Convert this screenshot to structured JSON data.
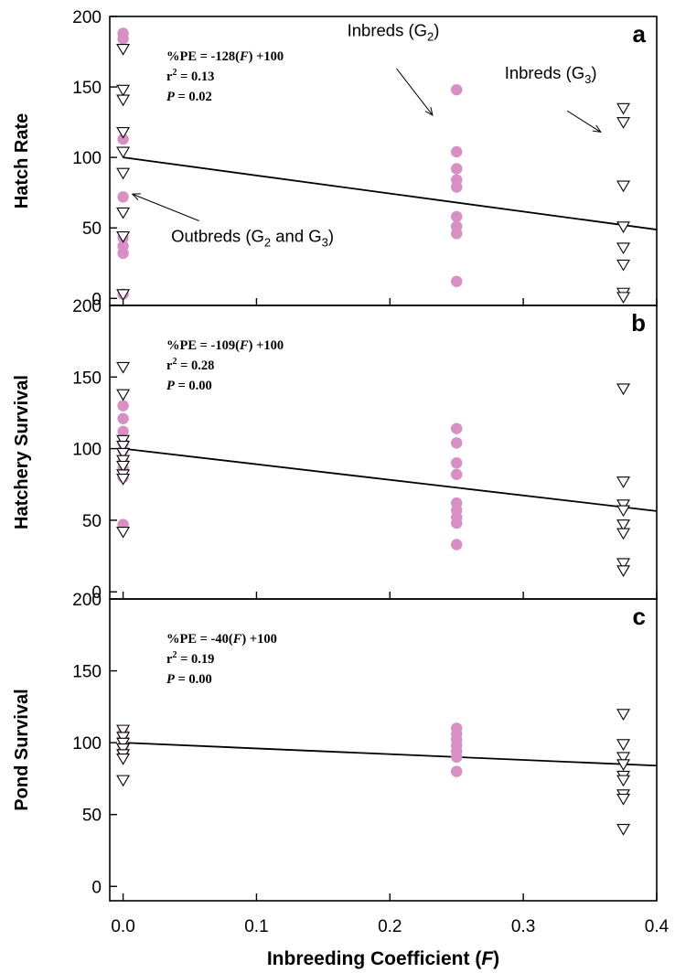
{
  "chart_data": {
    "type": "scatter",
    "x": {
      "label": "Inbreeding Coefficient (",
      "label_italic": "F",
      "label_close": ")",
      "range": [
        -0.01,
        0.4
      ],
      "ticks": [
        0.0,
        0.1,
        0.2,
        0.3,
        0.4
      ],
      "tick_labels": [
        "0.0",
        "0.1",
        "0.2",
        "0.3",
        "0.4"
      ]
    },
    "panels": [
      {
        "letter": "a",
        "ylabel": "Hatch Rate",
        "ylim": [
          -5,
          200
        ],
        "yticks": [
          0,
          50,
          100,
          150,
          200
        ],
        "ytick_labels": [
          "0",
          "50",
          "100",
          "150",
          "200"
        ],
        "eq_lead": "%PE = -128(",
        "eq_F": "F",
        "eq_tail": ") +100",
        "r2_lead": "r",
        "r2_sup": "2",
        "r2_tail": " = 0.13",
        "p_lead": "P",
        "p_tail": " = 0.02",
        "regression": {
          "slope": -128,
          "intercept": 100
        },
        "circles": [
          {
            "x": 0.0,
            "y": 188
          },
          {
            "x": 0.0,
            "y": 184
          },
          {
            "x": 0.0,
            "y": 113
          },
          {
            "x": 0.0,
            "y": 72
          },
          {
            "x": 0.0,
            "y": 43
          },
          {
            "x": 0.0,
            "y": 37
          },
          {
            "x": 0.0,
            "y": 32
          },
          {
            "x": 0.0,
            "y": 3
          },
          {
            "x": 0.25,
            "y": 148
          },
          {
            "x": 0.25,
            "y": 104
          },
          {
            "x": 0.25,
            "y": 92
          },
          {
            "x": 0.25,
            "y": 84
          },
          {
            "x": 0.25,
            "y": 79
          },
          {
            "x": 0.25,
            "y": 58
          },
          {
            "x": 0.25,
            "y": 51
          },
          {
            "x": 0.25,
            "y": 46
          },
          {
            "x": 0.25,
            "y": 12
          }
        ],
        "triangles": [
          {
            "x": 0.0,
            "y": 177
          },
          {
            "x": 0.0,
            "y": 148
          },
          {
            "x": 0.0,
            "y": 141
          },
          {
            "x": 0.0,
            "y": 118
          },
          {
            "x": 0.0,
            "y": 104
          },
          {
            "x": 0.0,
            "y": 89
          },
          {
            "x": 0.0,
            "y": 61
          },
          {
            "x": 0.0,
            "y": 44
          },
          {
            "x": 0.0,
            "y": 3
          },
          {
            "x": 0.375,
            "y": 135
          },
          {
            "x": 0.375,
            "y": 125
          },
          {
            "x": 0.375,
            "y": 80
          },
          {
            "x": 0.375,
            "y": 51
          },
          {
            "x": 0.375,
            "y": 36
          },
          {
            "x": 0.375,
            "y": 24
          },
          {
            "x": 0.375,
            "y": 4
          },
          {
            "x": 0.375,
            "y": 1
          }
        ],
        "annotations": [
          {
            "lead": "Inbreds (G",
            "sub": "2",
            "tail": ")",
            "tx": 0.168,
            "ty": 186,
            "ax1": 0.205,
            "ay1": 163,
            "ax2": 0.232,
            "ay2": 130
          },
          {
            "lead": "Inbreds (G",
            "sub": "3",
            "tail": ")",
            "tx": 0.286,
            "ty": 156,
            "ax1": 0.333,
            "ay1": 133,
            "ax2": 0.358,
            "ay2": 118
          },
          {
            "lead": "Outbreds (G",
            "sub": "2",
            "tail": " and G",
            "sub2": "3",
            "tail2": ")",
            "tx": 0.036,
            "ty": 40,
            "ax1": 0.057,
            "ay1": 55,
            "ax2": 0.007,
            "ay2": 74
          }
        ]
      },
      {
        "letter": "b",
        "ylabel": "Hatchery Survival",
        "ylim": [
          -5,
          200
        ],
        "yticks": [
          0,
          50,
          100,
          150,
          200
        ],
        "ytick_labels": [
          "0",
          "50",
          "100",
          "150",
          "200"
        ],
        "eq_lead": "%PE = -109(",
        "eq_F": "F",
        "eq_tail": ") +100",
        "r2_lead": "r",
        "r2_sup": "2",
        "r2_tail": " = 0.28",
        "p_lead": "P",
        "p_tail": " = 0.00",
        "regression": {
          "slope": -109,
          "intercept": 100
        },
        "circles": [
          {
            "x": 0.0,
            "y": 130
          },
          {
            "x": 0.0,
            "y": 121
          },
          {
            "x": 0.0,
            "y": 112
          },
          {
            "x": 0.0,
            "y": 104
          },
          {
            "x": 0.0,
            "y": 99
          },
          {
            "x": 0.0,
            "y": 91
          },
          {
            "x": 0.0,
            "y": 86
          },
          {
            "x": 0.0,
            "y": 80
          },
          {
            "x": 0.0,
            "y": 47
          },
          {
            "x": 0.25,
            "y": 114
          },
          {
            "x": 0.25,
            "y": 104
          },
          {
            "x": 0.25,
            "y": 90
          },
          {
            "x": 0.25,
            "y": 82
          },
          {
            "x": 0.25,
            "y": 62
          },
          {
            "x": 0.25,
            "y": 57
          },
          {
            "x": 0.25,
            "y": 52
          },
          {
            "x": 0.25,
            "y": 48
          },
          {
            "x": 0.25,
            "y": 33
          }
        ],
        "triangles": [
          {
            "x": 0.0,
            "y": 157
          },
          {
            "x": 0.0,
            "y": 138
          },
          {
            "x": 0.0,
            "y": 106
          },
          {
            "x": 0.0,
            "y": 102
          },
          {
            "x": 0.0,
            "y": 97
          },
          {
            "x": 0.0,
            "y": 92
          },
          {
            "x": 0.0,
            "y": 88
          },
          {
            "x": 0.0,
            "y": 82
          },
          {
            "x": 0.0,
            "y": 79
          },
          {
            "x": 0.0,
            "y": 42
          },
          {
            "x": 0.375,
            "y": 142
          },
          {
            "x": 0.375,
            "y": 77
          },
          {
            "x": 0.375,
            "y": 61
          },
          {
            "x": 0.375,
            "y": 57
          },
          {
            "x": 0.375,
            "y": 47
          },
          {
            "x": 0.375,
            "y": 41
          },
          {
            "x": 0.375,
            "y": 20
          },
          {
            "x": 0.375,
            "y": 15
          }
        ],
        "annotations": []
      },
      {
        "letter": "c",
        "ylabel": "Pond Survival",
        "ylim": [
          -10,
          200
        ],
        "yticks": [
          0,
          50,
          100,
          150,
          200
        ],
        "ytick_labels": [
          "0",
          "50",
          "100",
          "150",
          "200"
        ],
        "eq_lead": "%PE = -40(",
        "eq_F": "F",
        "eq_tail": ") +100",
        "r2_lead": "r",
        "r2_sup": "2",
        "r2_tail": " = 0.19",
        "p_lead": "P",
        "p_tail": " = 0.00",
        "regression": {
          "slope": -40,
          "intercept": 100
        },
        "circles": [
          {
            "x": 0.0,
            "y": 107
          },
          {
            "x": 0.0,
            "y": 103
          },
          {
            "x": 0.0,
            "y": 98
          },
          {
            "x": 0.0,
            "y": 94
          },
          {
            "x": 0.25,
            "y": 110
          },
          {
            "x": 0.25,
            "y": 106
          },
          {
            "x": 0.25,
            "y": 102
          },
          {
            "x": 0.25,
            "y": 98
          },
          {
            "x": 0.25,
            "y": 94
          },
          {
            "x": 0.25,
            "y": 90
          },
          {
            "x": 0.25,
            "y": 80
          }
        ],
        "triangles": [
          {
            "x": 0.0,
            "y": 109
          },
          {
            "x": 0.0,
            "y": 104
          },
          {
            "x": 0.0,
            "y": 100
          },
          {
            "x": 0.0,
            "y": 96
          },
          {
            "x": 0.0,
            "y": 92
          },
          {
            "x": 0.0,
            "y": 89
          },
          {
            "x": 0.0,
            "y": 74
          },
          {
            "x": 0.375,
            "y": 120
          },
          {
            "x": 0.375,
            "y": 99
          },
          {
            "x": 0.375,
            "y": 90
          },
          {
            "x": 0.375,
            "y": 85
          },
          {
            "x": 0.375,
            "y": 77
          },
          {
            "x": 0.375,
            "y": 74
          },
          {
            "x": 0.375,
            "y": 64
          },
          {
            "x": 0.375,
            "y": 61
          },
          {
            "x": 0.375,
            "y": 40
          }
        ],
        "annotations": []
      }
    ],
    "colors": {
      "circle_fill": "#d88fc4",
      "triangle_fill": "#ffffff",
      "line": "#000000"
    },
    "legend": "none",
    "grid": false
  }
}
